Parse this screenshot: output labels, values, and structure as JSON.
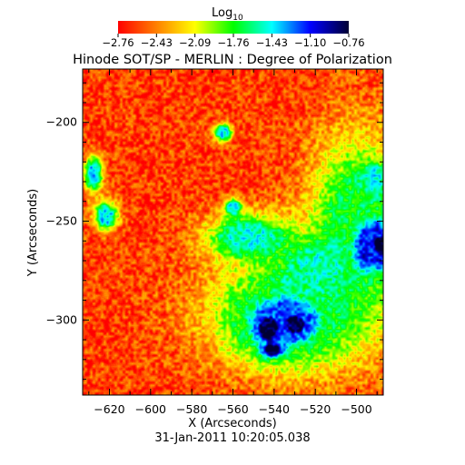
{
  "chart_data": {
    "type": "heatmap",
    "title": "Hinode SOT/SP - MERLIN : Degree of Polarization",
    "xlabel": "X (Arcseconds)",
    "ylabel": "Y (Arcseconds)",
    "timestamp": "31-Jan-2011 10:20:05.038",
    "colorbar": {
      "label_main": "Log",
      "label_sub": "10",
      "ticks": [
        "−2.76",
        "−2.43",
        "−2.09",
        "−1.76",
        "−1.43",
        "−1.10",
        "−0.76"
      ],
      "range": [
        -2.76,
        -0.76
      ],
      "colors": [
        "#ff0000",
        "#ff8000",
        "#ffff00",
        "#00ff00",
        "#00ffff",
        "#0000ff",
        "#000033"
      ]
    },
    "xlim": [
      -633,
      -487
    ],
    "ylim": [
      -338,
      -173
    ],
    "xticks": [
      -620,
      -600,
      -580,
      -560,
      -540,
      -520,
      -500
    ],
    "xtick_labels": [
      "−620",
      "−600",
      "−580",
      "−560",
      "−540",
      "−520",
      "−500"
    ],
    "yticks": [
      -200,
      -250,
      -300
    ],
    "ytick_labels": [
      "−200",
      "−250",
      "−300"
    ],
    "background_value": -2.6,
    "features": [
      {
        "name": "plage-core-1",
        "x": -543,
        "y": -304,
        "sx": 5,
        "sy": 6,
        "value": -0.75
      },
      {
        "name": "plage-core-2",
        "x": -530,
        "y": -302,
        "sx": 5,
        "sy": 5,
        "value": -0.85
      },
      {
        "name": "plage-core-3",
        "x": -541,
        "y": -315,
        "sx": 4,
        "sy": 3,
        "value": -0.8
      },
      {
        "name": "plage-blue-1",
        "x": -535,
        "y": -300,
        "sx": 16,
        "sy": 12,
        "value": -1.2
      },
      {
        "name": "plage-green",
        "x": -530,
        "y": -296,
        "sx": 28,
        "sy": 20,
        "value": -1.7
      },
      {
        "name": "edge-core",
        "x": -488,
        "y": -262,
        "sx": 4,
        "sy": 5,
        "value": -0.75
      },
      {
        "name": "edge-blue",
        "x": -492,
        "y": -262,
        "sx": 9,
        "sy": 12,
        "value": -1.1
      },
      {
        "name": "edge-green",
        "x": -500,
        "y": -250,
        "sx": 16,
        "sy": 30,
        "value": -1.7
      },
      {
        "name": "band-upper",
        "x": -552,
        "y": -258,
        "sx": 14,
        "sy": 8,
        "value": -1.5
      },
      {
        "name": "band-mid",
        "x": -520,
        "y": -274,
        "sx": 12,
        "sy": 10,
        "value": -1.55
      },
      {
        "name": "spot-left-1",
        "x": -628,
        "y": -226,
        "sx": 3,
        "sy": 6,
        "value": -1.35
      },
      {
        "name": "spot-left-2",
        "x": -622,
        "y": -247,
        "sx": 4,
        "sy": 5,
        "value": -1.4
      },
      {
        "name": "spot-top-1",
        "x": -565,
        "y": -205,
        "sx": 3,
        "sy": 3,
        "value": -1.45
      },
      {
        "name": "spot-top-2",
        "x": -560,
        "y": -243,
        "sx": 3,
        "sy": 3,
        "value": -1.45
      },
      {
        "name": "spot-right-1",
        "x": -492,
        "y": -228,
        "sx": 4,
        "sy": 5,
        "value": -1.45
      }
    ]
  }
}
